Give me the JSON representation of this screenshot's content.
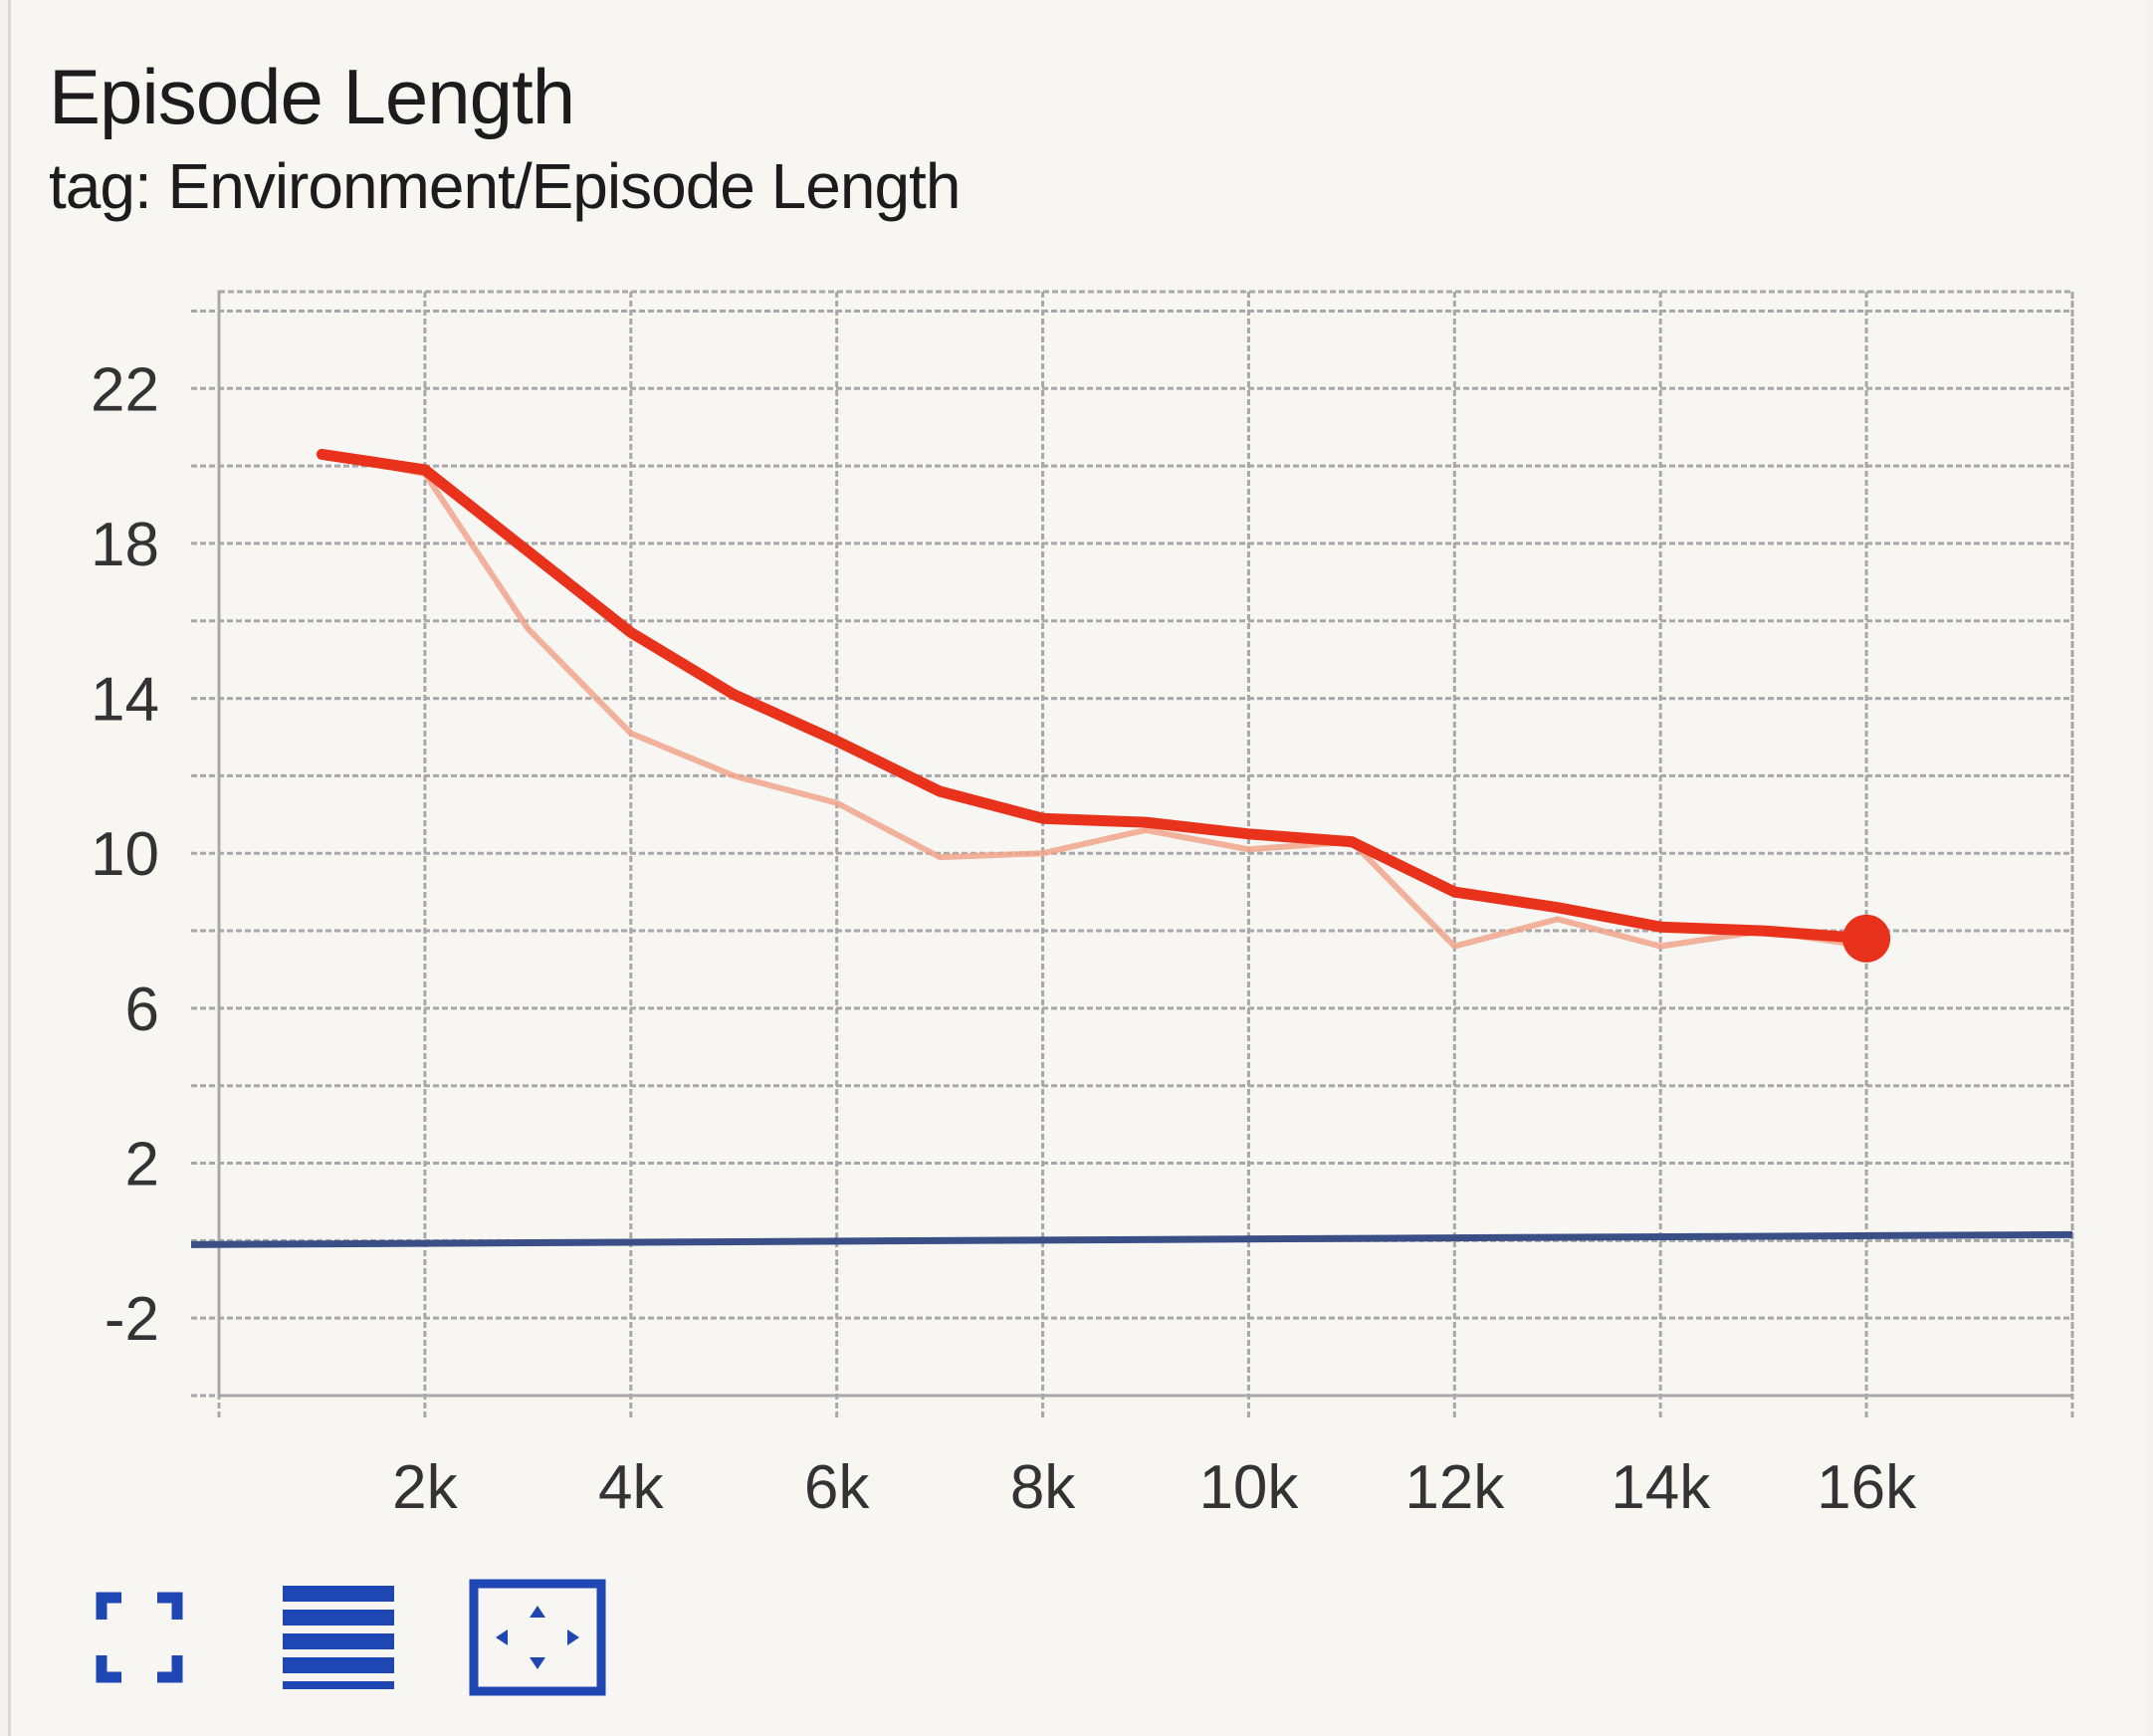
{
  "card": {
    "title": "Episode Length",
    "subtitle": "tag: Environment/Episode Length"
  },
  "colors": {
    "smoothed_line": "#e8321c",
    "raw_line": "#f0a48a",
    "zero_line": "#3a4f86",
    "grid": "#a8a8a8",
    "toolbar_icon": "#1f47b4"
  },
  "toolbar": {
    "items": [
      {
        "name": "fullscreen-icon"
      },
      {
        "name": "legend-toggle-icon"
      },
      {
        "name": "fit-domain-icon"
      }
    ]
  },
  "chart_data": {
    "type": "line",
    "title": "Episode Length",
    "subtitle": "tag: Environment/Episode Length",
    "xlabel": "",
    "ylabel": "",
    "xlim": [
      0,
      18000
    ],
    "ylim": [
      -4,
      24.5
    ],
    "x_ticks": [
      2000,
      4000,
      6000,
      8000,
      10000,
      12000,
      14000,
      16000
    ],
    "x_tick_labels": [
      "2k",
      "4k",
      "6k",
      "8k",
      "10k",
      "12k",
      "14k",
      "16k"
    ],
    "y_ticks": [
      -2,
      2,
      6,
      10,
      14,
      18,
      22
    ],
    "y_tick_labels": [
      "-2",
      "2",
      "6",
      "10",
      "14",
      "18",
      "22"
    ],
    "grid": true,
    "series": [
      {
        "role": "smoothed",
        "x": [
          1000,
          2000,
          3000,
          4000,
          5000,
          6000,
          7000,
          8000,
          9000,
          10000,
          11000,
          12000,
          13000,
          14000,
          15000,
          16000
        ],
        "y": [
          20.3,
          19.9,
          17.8,
          15.7,
          14.1,
          12.9,
          11.6,
          10.9,
          10.8,
          10.5,
          10.3,
          9.0,
          8.6,
          8.1,
          8.0,
          7.8
        ]
      },
      {
        "role": "raw",
        "x": [
          1000,
          2000,
          3000,
          4000,
          5000,
          6000,
          7000,
          8000,
          9000,
          10000,
          11000,
          12000,
          13000,
          14000,
          15000,
          16000
        ],
        "y": [
          20.3,
          19.8,
          15.8,
          13.1,
          12.0,
          11.3,
          9.9,
          10.0,
          10.6,
          10.1,
          10.3,
          7.6,
          8.3,
          7.6,
          8.0,
          7.6
        ]
      }
    ],
    "final_marker": {
      "x": 16000,
      "y": 7.8
    }
  }
}
